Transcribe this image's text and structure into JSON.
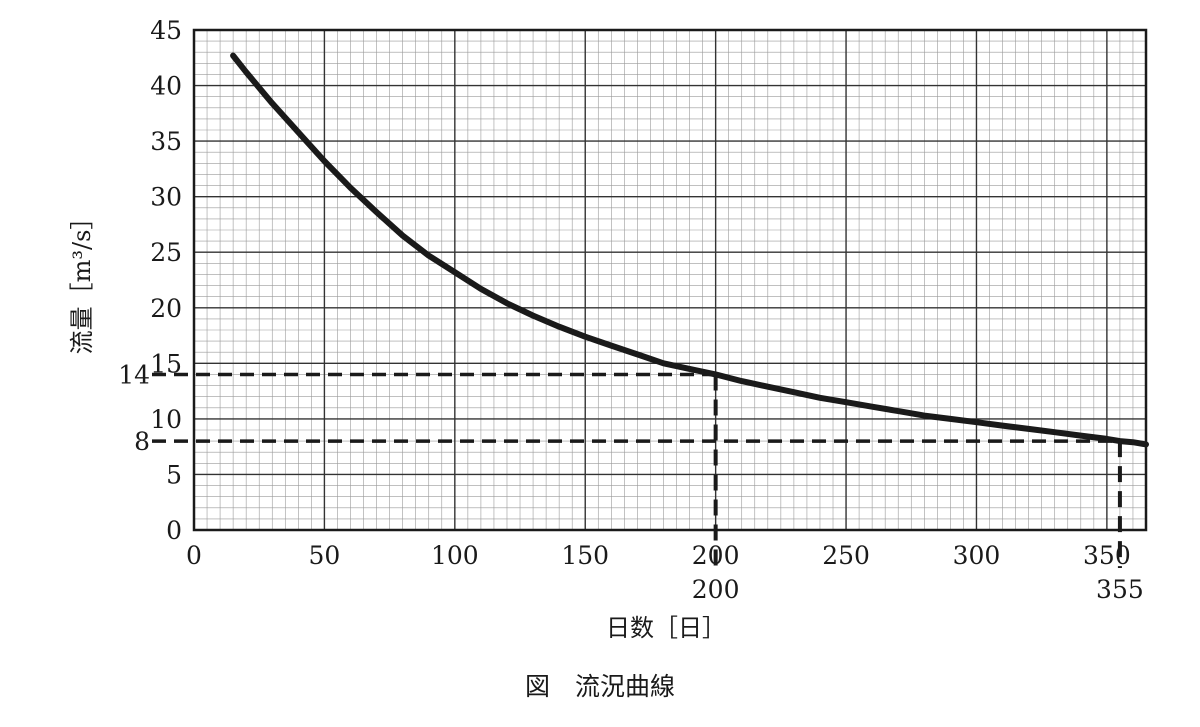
{
  "chart_data": {
    "type": "line",
    "title": "図　流況曲線",
    "xlabel": "日数［日］",
    "ylabel": "流量［m³/s］",
    "xlim": [
      0,
      365
    ],
    "ylim": [
      0,
      45
    ],
    "x_ticks": [
      0,
      50,
      100,
      150,
      200,
      250,
      300,
      350
    ],
    "y_ticks": [
      0,
      5,
      10,
      15,
      20,
      25,
      30,
      35,
      40,
      45
    ],
    "grid": true,
    "series": [
      {
        "x": [
          15,
          20,
          30,
          40,
          50,
          60,
          70,
          80,
          90,
          100,
          110,
          120,
          130,
          140,
          150,
          160,
          170,
          180,
          190,
          200,
          210,
          220,
          230,
          240,
          250,
          260,
          270,
          280,
          290,
          300,
          310,
          320,
          330,
          340,
          350,
          355,
          360,
          365
        ],
        "y": [
          42.7,
          41.2,
          38.4,
          35.8,
          33.2,
          30.8,
          28.6,
          26.5,
          24.7,
          23.2,
          21.7,
          20.4,
          19.3,
          18.3,
          17.4,
          16.6,
          15.8,
          15.0,
          14.5,
          14.0,
          13.4,
          12.9,
          12.4,
          11.9,
          11.5,
          11.1,
          10.7,
          10.3,
          10.0,
          9.7,
          9.4,
          9.1,
          8.8,
          8.5,
          8.2,
          8.0,
          7.9,
          7.7
        ]
      }
    ],
    "annotations": [
      {
        "x": 200,
        "y": 14,
        "x_label": "200",
        "y_label": "14"
      },
      {
        "x": 355,
        "y": 8,
        "x_label": "355",
        "y_label": "8"
      }
    ]
  }
}
